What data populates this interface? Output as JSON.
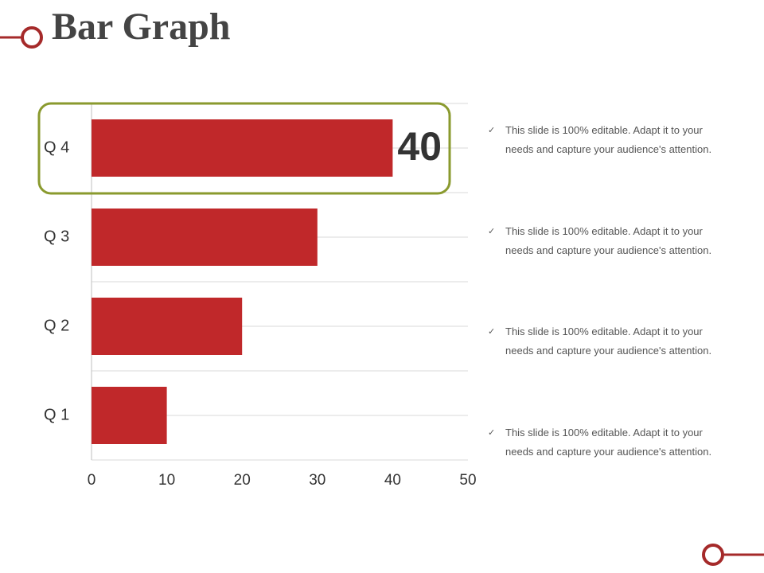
{
  "chart_data": {
    "type": "hbar",
    "title": "Bar Graph",
    "categories": [
      "Q 1",
      "Q 2",
      "Q 3",
      "Q 4"
    ],
    "values": [
      10,
      20,
      30,
      40
    ],
    "color": "#c0282a",
    "xlim": [
      0,
      50
    ],
    "xticks": [
      0,
      10,
      20,
      30,
      40,
      50
    ],
    "grid": true,
    "highlight": 3
  },
  "notes": [
    "This slide is 100% editable. Adapt it to your needs and capture your audience's attention.",
    "This slide is 100% editable. Adapt it to your needs and capture your audience's attention.",
    "This slide is 100% editable. Adapt it to your needs and capture your audience's attention.",
    "This slide is 100% editable. Adapt it to your needs and capture your audience's attention."
  ]
}
